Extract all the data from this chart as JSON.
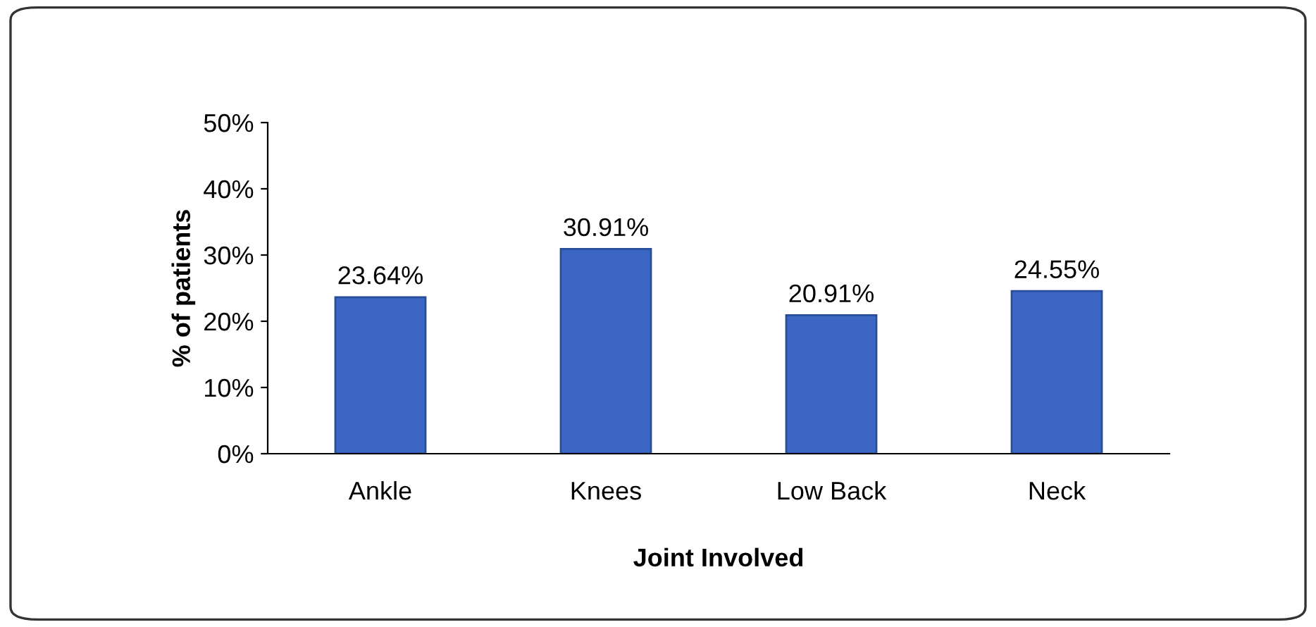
{
  "chart_data": {
    "type": "bar",
    "categories": [
      "Ankle",
      "Knees",
      "Low Back",
      "Neck"
    ],
    "values": [
      23.64,
      30.91,
      20.91,
      24.55
    ],
    "value_labels": [
      "23.64%",
      "30.91%",
      "20.91%",
      "24.55%"
    ],
    "color": "#3b66c4",
    "xlabel": "Joint Involved",
    "ylabel": "% of patients",
    "ylim": [
      0,
      50
    ],
    "yticks": [
      {
        "value": 0,
        "label": "0%"
      },
      {
        "value": 10,
        "label": "10%"
      },
      {
        "value": 20,
        "label": "20%"
      },
      {
        "value": 30,
        "label": "30%"
      },
      {
        "value": 40,
        "label": "40%"
      },
      {
        "value": 50,
        "label": "50%"
      }
    ],
    "grid": false,
    "legend": false
  }
}
